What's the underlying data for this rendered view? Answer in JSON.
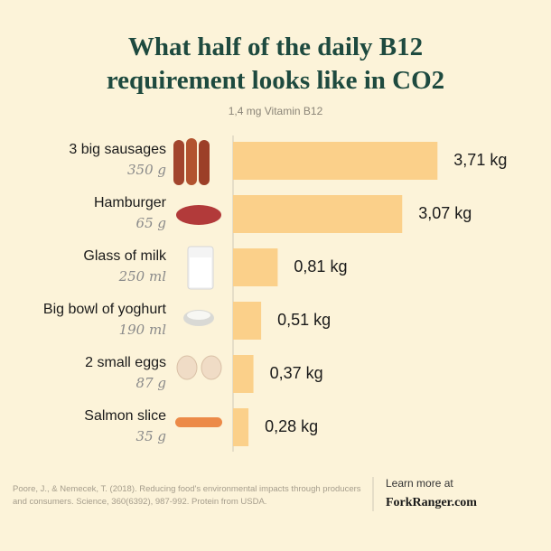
{
  "chart_data": {
    "type": "bar",
    "title": "What half of the daily B12 requirement looks like in CO2",
    "subtitle": "1,4 mg Vitamin B12",
    "categories": [
      "3 big sausages",
      "Hamburger",
      "Glass of milk",
      "Big bowl of yoghurt",
      "2 small eggs",
      "Salmon slice"
    ],
    "amounts": [
      "350 g",
      "65 g",
      "250 ml",
      "190 ml",
      "87 g",
      "35 g"
    ],
    "values": [
      3.71,
      3.07,
      0.81,
      0.51,
      0.37,
      0.28
    ],
    "value_labels": [
      "3,71 kg",
      "3,07 kg",
      "0,81 kg",
      "0,51 kg",
      "0,37 kg",
      "0,28 kg"
    ],
    "color": "#fbd08a",
    "source": "Poore, J., & Nemecek, T. (2018). Reducing food's environmental impacts through producers and consumers. Science, 360(6392), 987-992. Protein from USDA.",
    "link_label": "Learn more at",
    "link": "ForkRanger.com"
  }
}
